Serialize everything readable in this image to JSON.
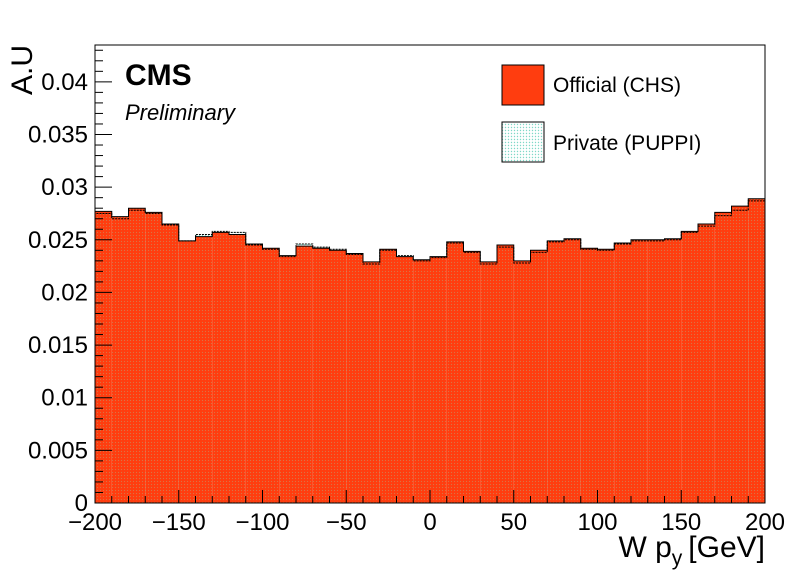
{
  "chart_data": {
    "type": "histogram",
    "title": "",
    "xlabel": "W p_y [GeV]",
    "xlabel_main": "W p",
    "xlabel_sub": "y",
    "xlabel_unit": "[GeV]",
    "ylabel": "A.U",
    "xlim": [
      -200,
      200
    ],
    "ylim": [
      0,
      0.0435
    ],
    "xticks": [
      -200,
      -150,
      -100,
      -50,
      0,
      50,
      100,
      150,
      200
    ],
    "xtick_labels": [
      "−200",
      "−150",
      "−100",
      "−50",
      "0",
      "50",
      "100",
      "150",
      "200"
    ],
    "yticks": [
      0,
      0.005,
      0.01,
      0.015,
      0.02,
      0.025,
      0.03,
      0.035,
      0.04
    ],
    "ytick_labels": [
      "0",
      "0.005",
      "0.01",
      "0.015",
      "0.02",
      "0.025",
      "0.03",
      "0.035",
      "0.04"
    ],
    "grid": false,
    "legend_position": "top-right",
    "bin_width": 10,
    "bin_low_edges": [
      -200,
      -190,
      -180,
      -170,
      -160,
      -150,
      -140,
      -130,
      -120,
      -110,
      -100,
      -90,
      -80,
      -70,
      -60,
      -50,
      -40,
      -30,
      -20,
      -10,
      0,
      10,
      20,
      30,
      40,
      50,
      60,
      70,
      80,
      90,
      100,
      110,
      120,
      130,
      140,
      150,
      160,
      170,
      180,
      190
    ],
    "series": [
      {
        "name": "Official (CHS)",
        "color": "#ff3d0f",
        "style": "filled",
        "values": [
          0.0277,
          0.0272,
          0.028,
          0.0276,
          0.0265,
          0.0249,
          0.0253,
          0.0257,
          0.0255,
          0.0246,
          0.0242,
          0.0235,
          0.0244,
          0.0242,
          0.024,
          0.0237,
          0.0229,
          0.0241,
          0.0234,
          0.0231,
          0.0234,
          0.0248,
          0.0239,
          0.0229,
          0.0245,
          0.023,
          0.024,
          0.0249,
          0.0251,
          0.0242,
          0.0241,
          0.0247,
          0.025,
          0.025,
          0.0251,
          0.0258,
          0.0265,
          0.0276,
          0.0282,
          0.0289
        ]
      },
      {
        "name": "Private (PUPPI)",
        "color": "#7fd8c7",
        "style": "hatched",
        "values": [
          0.0275,
          0.027,
          0.0278,
          0.0275,
          0.0264,
          0.0249,
          0.0255,
          0.0258,
          0.0257,
          0.0245,
          0.0241,
          0.0234,
          0.0246,
          0.0243,
          0.0241,
          0.0236,
          0.0227,
          0.024,
          0.0235,
          0.023,
          0.0233,
          0.0247,
          0.0238,
          0.0227,
          0.0243,
          0.0228,
          0.0238,
          0.0248,
          0.025,
          0.0241,
          0.024,
          0.0246,
          0.0249,
          0.0249,
          0.025,
          0.0257,
          0.0263,
          0.0273,
          0.0278,
          0.0287
        ]
      }
    ]
  },
  "annotations": {
    "experiment": "CMS",
    "status": "Preliminary"
  },
  "colors": {
    "official_fill": "#ff3d0f",
    "private_hatch": "#7fd8c7",
    "axis": "#000000",
    "background": "#ffffff"
  }
}
